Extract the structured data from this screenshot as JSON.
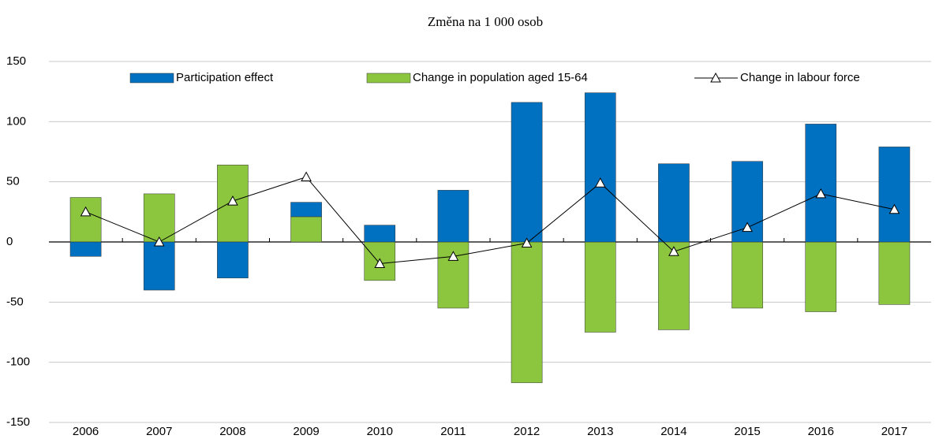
{
  "chart_data": {
    "type": "bar",
    "title": "Změna na 1 000 osob",
    "categories": [
      "2006",
      "2007",
      "2008",
      "2009",
      "2010",
      "2011",
      "2012",
      "2013",
      "2014",
      "2015",
      "2016",
      "2017"
    ],
    "series": [
      {
        "name": "Participation effect",
        "type": "bar",
        "color": "#0070c0",
        "values": [
          -12,
          -40,
          -30,
          12,
          14,
          43,
          116,
          124,
          65,
          67,
          98,
          79
        ]
      },
      {
        "name": "Change in population aged 15-64",
        "type": "bar",
        "color": "#8cc63f",
        "values": [
          37,
          40,
          64,
          21,
          -32,
          -55,
          -117,
          -75,
          -73,
          -55,
          -58,
          -52
        ]
      },
      {
        "name": "Change in labour force",
        "type": "line",
        "color": "#000000",
        "values": [
          25,
          0,
          34,
          54,
          -18,
          -12,
          -1,
          49,
          -8,
          12,
          40,
          27
        ]
      }
    ],
    "stacked": true,
    "ylim": [
      -150,
      150
    ],
    "yticks": [
      -150,
      -100,
      -50,
      0,
      50,
      100,
      150
    ],
    "grid": true
  }
}
